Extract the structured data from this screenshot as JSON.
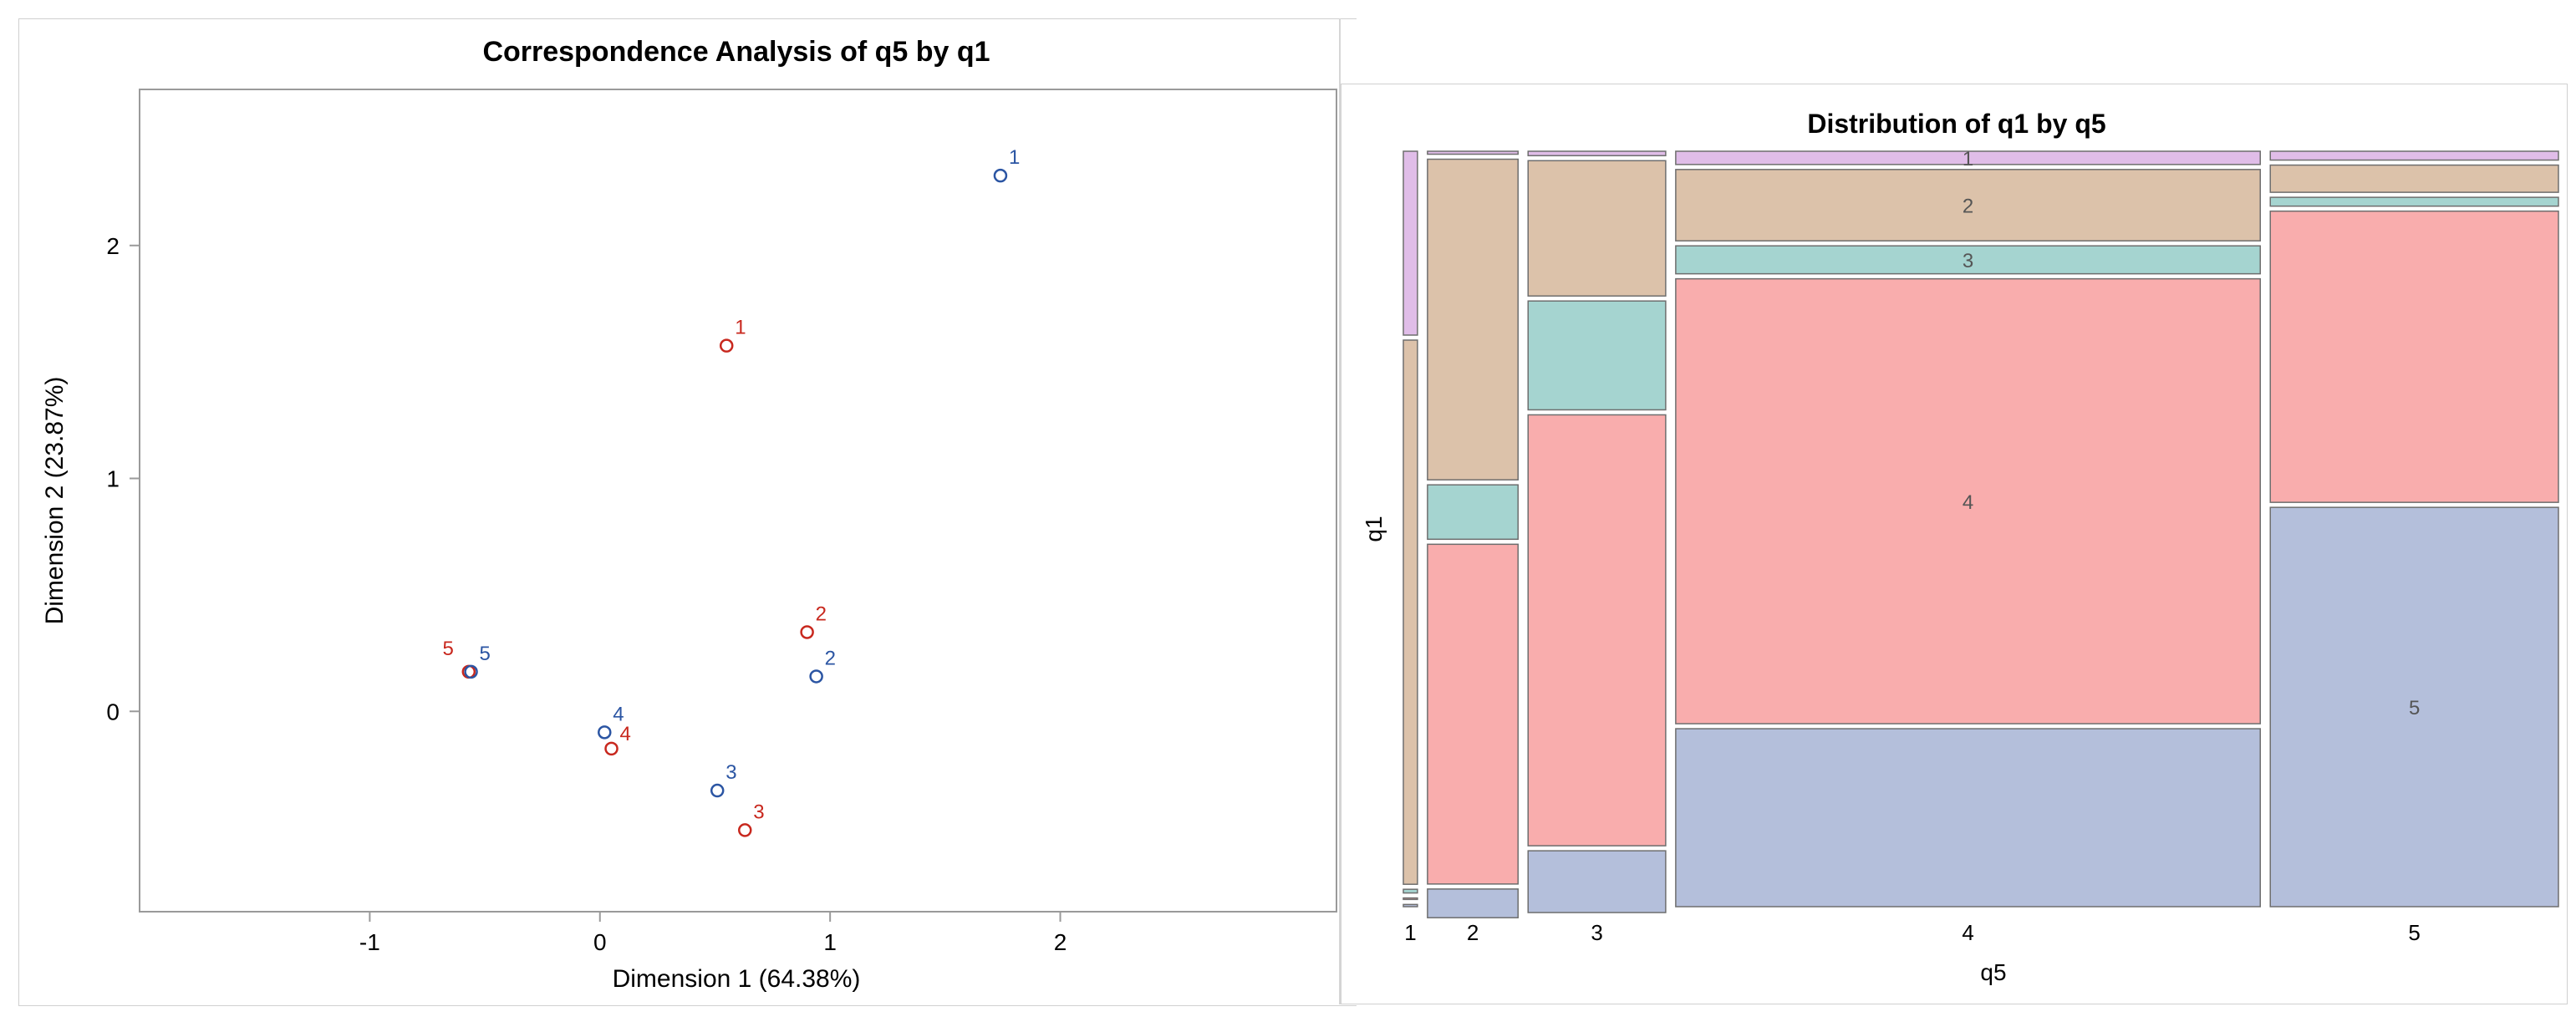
{
  "chart_data": [
    {
      "type": "scatter",
      "title": "Correspondence Analysis of q5 by q1",
      "xlabel": "Dimension 1 (64.38%)",
      "ylabel": "Dimension 2 (23.87%)",
      "xlim": [
        -2.0,
        3.2
      ],
      "ylim": [
        -0.86,
        2.67
      ],
      "xticks": [
        -1,
        0,
        1,
        2
      ],
      "yticks": [
        0,
        1,
        2
      ],
      "grid": false,
      "series": [
        {
          "name": "q1",
          "color": "#c8281e",
          "points": [
            {
              "label": "1",
              "x": 0.55,
              "y": 1.57
            },
            {
              "label": "2",
              "x": 0.9,
              "y": 0.34
            },
            {
              "label": "3",
              "x": 0.63,
              "y": -0.51
            },
            {
              "label": "4",
              "x": 0.05,
              "y": -0.16
            },
            {
              "label": "5",
              "x": -0.57,
              "y": 0.17
            }
          ]
        },
        {
          "name": "q5",
          "color": "#2b55a3",
          "points": [
            {
              "label": "1",
              "x": 1.74,
              "y": 2.3
            },
            {
              "label": "2",
              "x": 0.94,
              "y": 0.15
            },
            {
              "label": "3",
              "x": 0.51,
              "y": -0.34
            },
            {
              "label": "4",
              "x": 0.02,
              "y": -0.09
            },
            {
              "label": "5",
              "x": -0.56,
              "y": 0.17
            }
          ]
        }
      ]
    },
    {
      "type": "mosaic",
      "title": "Distribution of q1 by q5",
      "xlabel": "q5",
      "ylabel": "q1",
      "q5_categories": [
        "1",
        "2",
        "3",
        "4",
        "5"
      ],
      "q5_shares": [
        0.012,
        0.077,
        0.117,
        0.497,
        0.245
      ],
      "q1_categories": [
        "1",
        "2",
        "3",
        "4",
        "5"
      ],
      "q1_colors": {
        "1": "#e0bde8",
        "2": "#dcc2aa",
        "3": "#a5d4d0",
        "4": "#f9adad",
        "5": "#b4bfdb"
      },
      "cell_labels_shown": [
        {
          "q5": "4",
          "q1": "1",
          "text": "1"
        },
        {
          "q5": "4",
          "q1": "2",
          "text": "2"
        },
        {
          "q5": "4",
          "q1": "3",
          "text": "3"
        },
        {
          "q5": "4",
          "q1": "4",
          "text": "4"
        },
        {
          "q5": "5",
          "q1": "5",
          "text": "5"
        }
      ],
      "proportions": {
        "1": {
          "1": 0.25,
          "2": 0.74,
          "3": 0.005,
          "4": 0.002,
          "5": 0.003
        },
        "2": {
          "1": 0.004,
          "2": 0.436,
          "3": 0.074,
          "4": 0.462,
          "5": 0.039
        },
        "3": {
          "1": 0.006,
          "2": 0.184,
          "3": 0.148,
          "4": 0.586,
          "5": 0.084
        },
        "4": {
          "1": 0.018,
          "2": 0.097,
          "3": 0.038,
          "4": 0.605,
          "5": 0.242
        },
        "5": {
          "1": 0.012,
          "2": 0.037,
          "3": 0.012,
          "4": 0.396,
          "5": 0.543
        }
      }
    }
  ]
}
